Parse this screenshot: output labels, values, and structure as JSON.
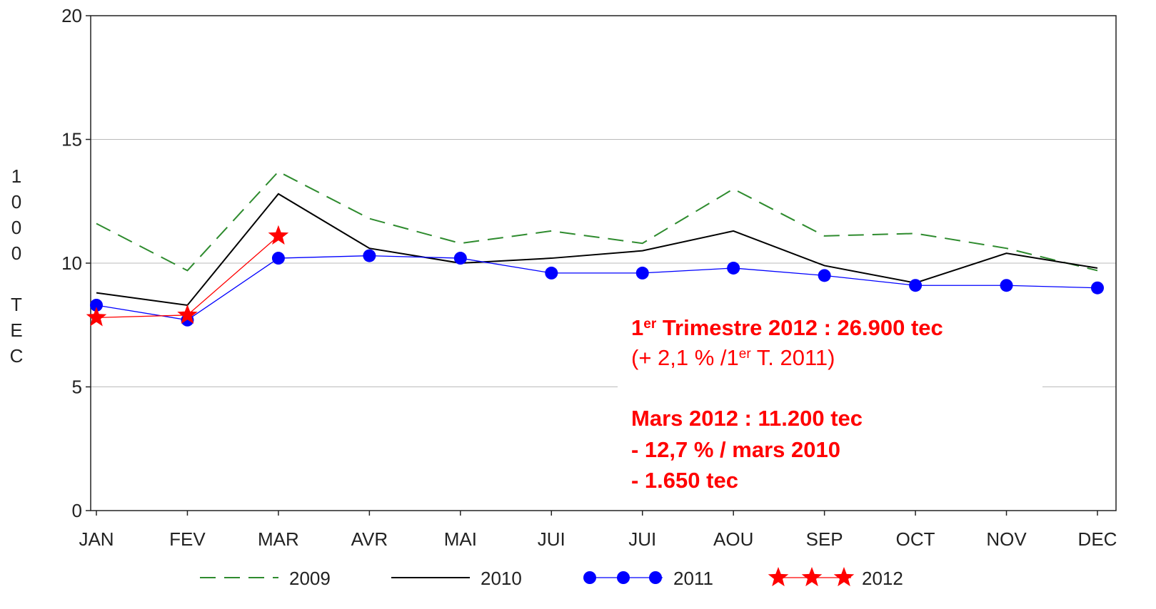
{
  "chart_data": {
    "type": "line",
    "y_label": "1000 TEC",
    "categories": [
      "JAN",
      "FEV",
      "MAR",
      "AVR",
      "MAI",
      "JUI",
      "JUI",
      "AOU",
      "SEP",
      "OCT",
      "NOV",
      "DEC"
    ],
    "series": [
      {
        "name": "2009",
        "color": "#2e8b2e",
        "line_style": "dashed",
        "marker": "none",
        "values": [
          11.6,
          9.7,
          13.7,
          11.8,
          10.8,
          11.3,
          10.8,
          13.0,
          11.1,
          11.2,
          10.6,
          9.7
        ]
      },
      {
        "name": "2010",
        "color": "#000000",
        "line_style": "solid",
        "marker": "none",
        "values": [
          8.8,
          8.3,
          12.8,
          10.6,
          10.0,
          10.2,
          10.5,
          11.3,
          9.9,
          9.2,
          10.4,
          9.8
        ]
      },
      {
        "name": "2011",
        "color": "#0000ff",
        "line_style": "solid",
        "marker": "circle",
        "values": [
          8.3,
          7.7,
          10.2,
          10.3,
          10.2,
          9.6,
          9.6,
          9.8,
          9.5,
          9.1,
          9.1,
          9.0
        ]
      },
      {
        "name": "2012",
        "color": "#ff0000",
        "line_style": "solid",
        "marker": "star",
        "values": [
          7.8,
          7.9,
          11.1,
          null,
          null,
          null,
          null,
          null,
          null,
          null,
          null,
          null
        ]
      }
    ],
    "ylim": [
      0,
      20
    ],
    "yticks": [
      0,
      5,
      10,
      15,
      20
    ],
    "grid": true,
    "annotations": [
      [
        "1",
        "er",
        " Trimestre 2012 : 26.900 tec"
      ],
      [
        "(+ 2,1 % /1",
        "er",
        " T. 2011)"
      ],
      [
        "Mars 2012 :  11.200 tec"
      ],
      [
        "- 12,7 % / mars 2010"
      ],
      [
        "- 1.650 tec"
      ]
    ]
  }
}
